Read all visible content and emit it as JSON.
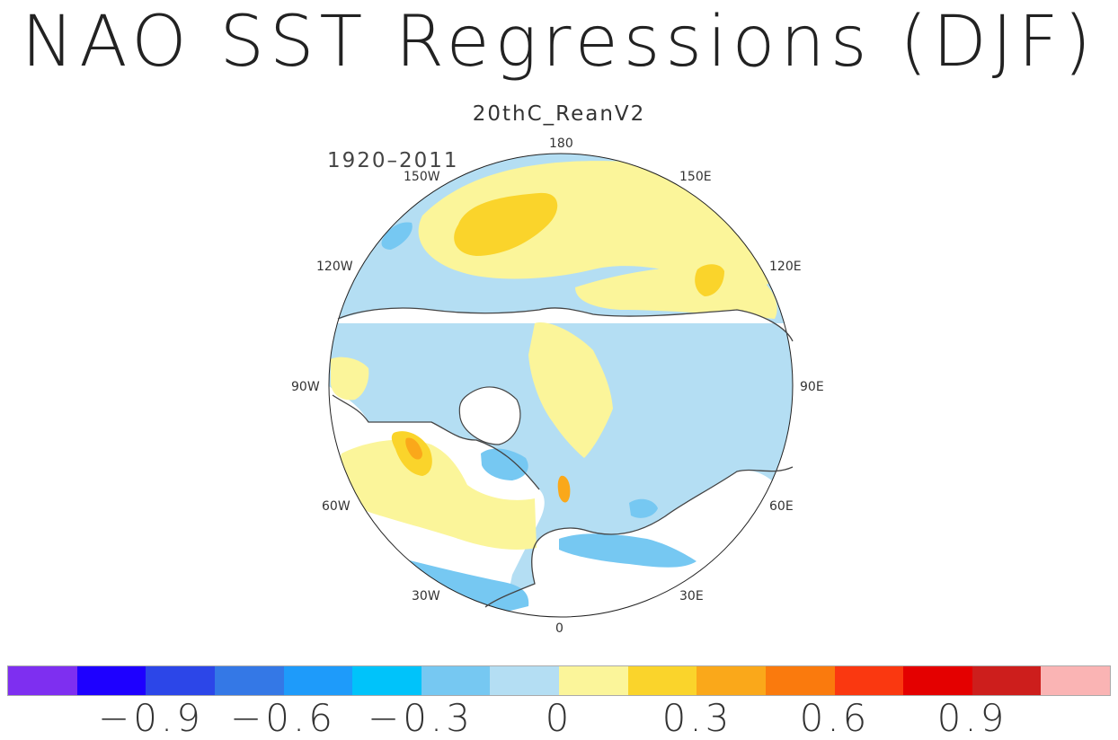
{
  "title": "NAO SST Regressions (DJF)",
  "subtitle": "20thC_ReanV2",
  "period": "1920–2011",
  "longitude_labels": {
    "top": "180",
    "bottom": "0",
    "left": "90W",
    "right": "90E",
    "upper_left_1": "150W",
    "upper_left_2": "120W",
    "lower_left_1": "60W",
    "lower_left_2": "30W",
    "upper_right_1": "150E",
    "upper_right_2": "120E",
    "lower_right_1": "60E",
    "lower_right_2": "30E"
  },
  "colors": {
    "c1": "#7e2ff0",
    "c2": "#1e00ff",
    "c3": "#2c46e8",
    "c4": "#3478e6",
    "c5": "#1e9bfa",
    "c6": "#00c3fa",
    "c7": "#76c8f2",
    "c8": "#b4def3",
    "c9": "#fbf59a",
    "c10": "#fad42b",
    "c11": "#faa81a",
    "c12": "#fa7a0d",
    "c13": "#fa3810",
    "c14": "#e40000",
    "c15": "#cd1e1c",
    "c16": "#fab4b4"
  },
  "colorbar": {
    "labels": [
      "−0.9",
      "−0.6",
      "−0.3",
      "0",
      "0.3",
      "0.6",
      "0.9"
    ],
    "swatches": [
      "c1",
      "c2",
      "c3",
      "c4",
      "c5",
      "c6",
      "c7",
      "c8",
      "c9",
      "c10",
      "c11",
      "c12",
      "c13",
      "c14",
      "c15",
      "c16"
    ]
  }
}
